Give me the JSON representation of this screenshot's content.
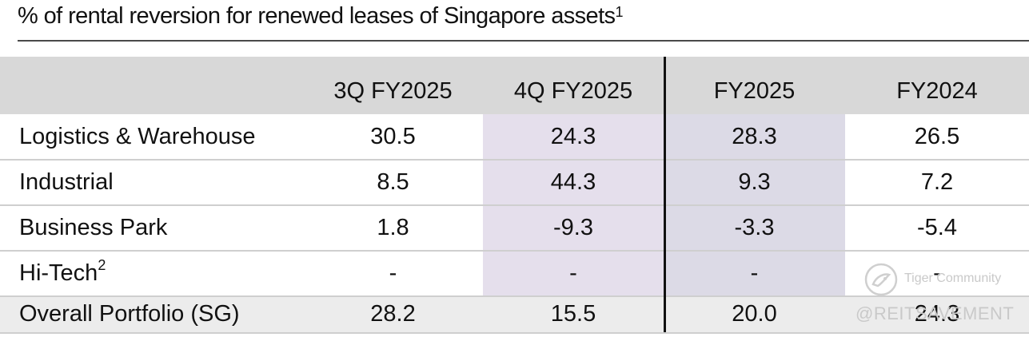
{
  "chart_data": {
    "type": "table",
    "title": "% of rental reversion for renewed leases of Singapore assets",
    "title_footnote": "1",
    "columns": [
      "",
      "3Q FY2025",
      "4Q FY2025",
      "FY2025",
      "FY2024"
    ],
    "rows": [
      {
        "label": "Logistics & Warehouse",
        "footnote": "",
        "values": [
          "30.5",
          "24.3",
          "28.3",
          "26.5"
        ]
      },
      {
        "label": "Industrial",
        "footnote": "",
        "values": [
          "8.5",
          "44.3",
          "9.3",
          "7.2"
        ]
      },
      {
        "label": "Business Park",
        "footnote": "",
        "values": [
          "1.8",
          "-9.3",
          "-3.3",
          "-5.4"
        ]
      },
      {
        "label": "Hi-Tech",
        "footnote": "2",
        "values": [
          "-",
          "-",
          "-",
          "-"
        ]
      },
      {
        "label": "Overall Portfolio (SG)",
        "footnote": "",
        "values": [
          "28.2",
          "15.5",
          "20.0",
          "24.3"
        ]
      }
    ]
  },
  "colors": {
    "header_bg": "#d8d8d8",
    "total_row_bg": "#ececec",
    "highlight_4q": "#e5dfec",
    "highlight_fy2025": "#dcdae6",
    "grid_line": "#cfcfcf",
    "divider": "#111111"
  },
  "watermark": {
    "name": "Tiger Community",
    "handle": "@REITSAVEMENT"
  }
}
